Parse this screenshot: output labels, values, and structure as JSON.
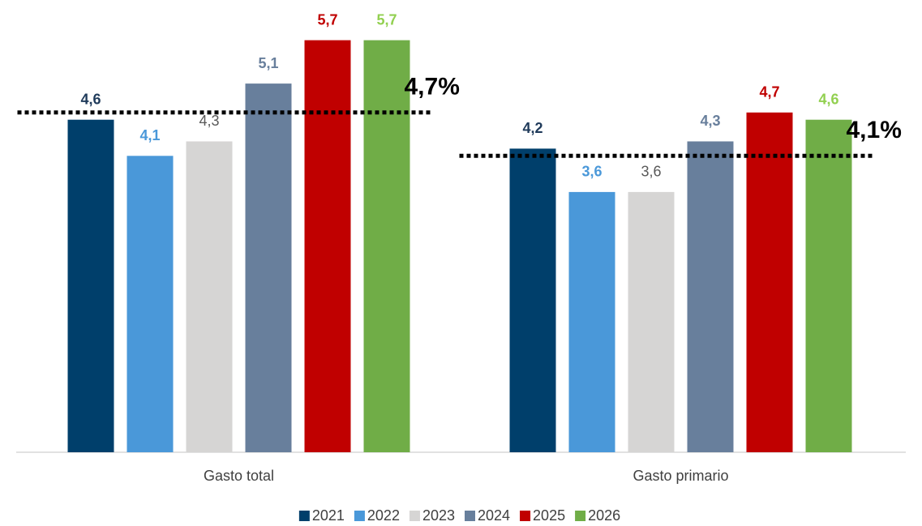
{
  "chart_data": {
    "type": "bar",
    "categories": [
      "Gasto total",
      "Gasto primario"
    ],
    "series": [
      {
        "name": "2021",
        "color": "#003f6b",
        "label_color": "#1f3a5a",
        "label_weight": "bold",
        "values": [
          4.6,
          4.2
        ],
        "value_labels": [
          "4,6",
          "4,2"
        ]
      },
      {
        "name": "2022",
        "color": "#4a98d9",
        "label_color": "#4a98d9",
        "label_weight": "bold",
        "values": [
          4.1,
          3.6
        ],
        "value_labels": [
          "4,1",
          "3,6"
        ]
      },
      {
        "name": "2023",
        "color": "#d6d5d4",
        "label_color": "#595959",
        "label_weight": "normal",
        "values": [
          4.3,
          3.6
        ],
        "value_labels": [
          "4,3",
          "3,6"
        ]
      },
      {
        "name": "2024",
        "color": "#687f9c",
        "label_color": "#687f9c",
        "label_weight": "bold",
        "values": [
          5.1,
          4.3
        ],
        "value_labels": [
          "5,1",
          "4,3"
        ]
      },
      {
        "name": "2025",
        "color": "#c00000",
        "label_color": "#c00000",
        "label_weight": "bold",
        "values": [
          5.7,
          4.7
        ],
        "value_labels": [
          "5,7",
          "4,7"
        ]
      },
      {
        "name": "2026",
        "color": "#70ad47",
        "label_color": "#92d050",
        "label_weight": "bold",
        "values": [
          5.7,
          4.6
        ],
        "value_labels": [
          "5,7",
          "4,6"
        ]
      }
    ],
    "reference_values": [
      4.7,
      4.1
    ],
    "reference_labels": [
      "4,7%",
      "4,1%"
    ],
    "ylim": [
      0,
      6.2
    ],
    "legend": "bottom"
  }
}
